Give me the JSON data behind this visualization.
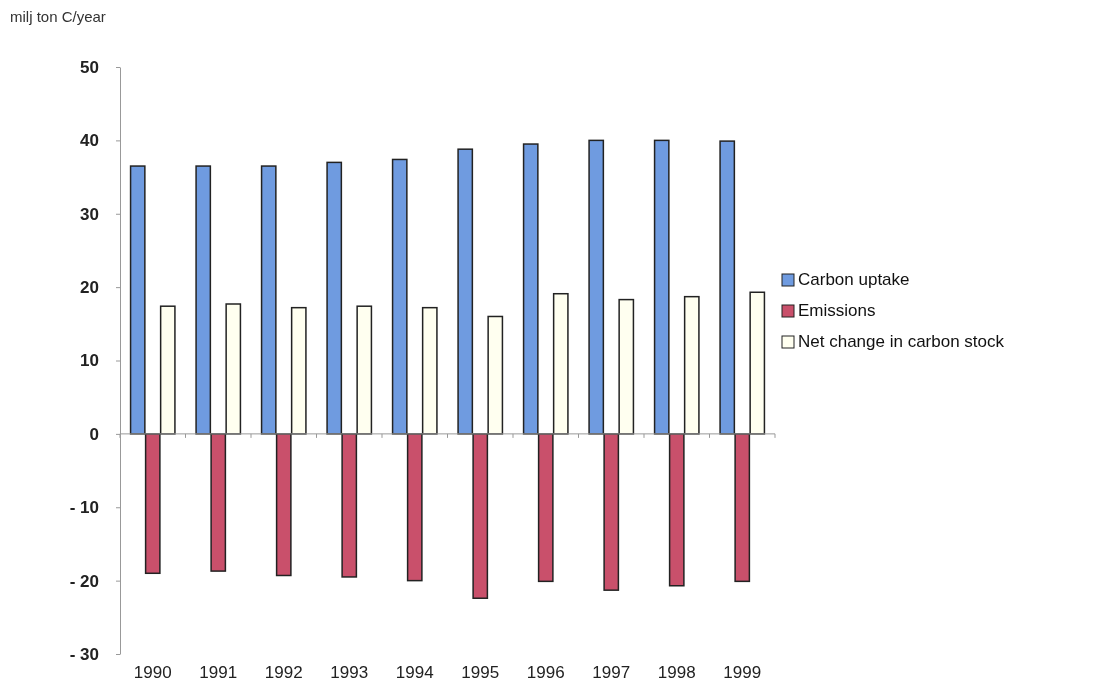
{
  "chart_data": {
    "type": "bar",
    "ylabel": "milj ton C/year",
    "categories": [
      "1990",
      "1991",
      "1992",
      "1993",
      "1994",
      "1995",
      "1996",
      "1997",
      "1998",
      "1999"
    ],
    "series": [
      {
        "name": "Carbon uptake",
        "color": "#6f9be0",
        "values": [
          36.5,
          36.5,
          36.5,
          37.0,
          37.4,
          38.8,
          39.5,
          40.0,
          40.0,
          39.9
        ]
      },
      {
        "name": "Emissions",
        "color": "#c9506b",
        "values": [
          -19.0,
          -18.7,
          -19.3,
          -19.5,
          -20.0,
          -22.4,
          -20.1,
          -21.3,
          -20.7,
          -20.1
        ]
      },
      {
        "name": "Net change in carbon stock",
        "color": "#fffff0",
        "values": [
          17.4,
          17.7,
          17.2,
          17.4,
          17.2,
          16.0,
          19.1,
          18.3,
          18.7,
          19.3
        ]
      }
    ],
    "ylim": [
      -30,
      50
    ],
    "yticks": [
      {
        "value": -30,
        "label": "- 30"
      },
      {
        "value": -20,
        "label": "- 20"
      },
      {
        "value": -10,
        "label": "- 10"
      },
      0,
      10,
      20,
      30,
      40,
      50
    ],
    "legend": "right"
  }
}
